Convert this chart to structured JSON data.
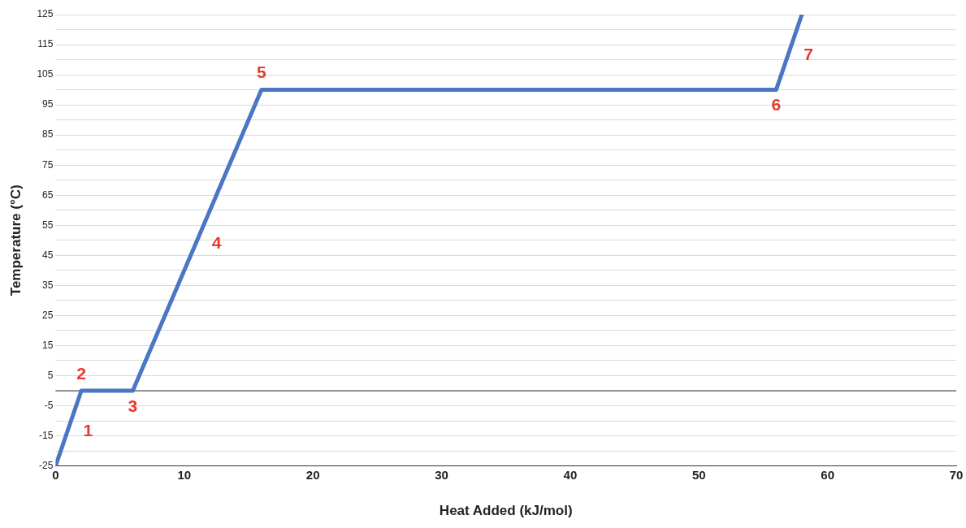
{
  "chart_data": {
    "type": "line",
    "xlabel": "Heat Added (kJ/mol)",
    "ylabel": "Temperature (°C)",
    "x": [
      0,
      2,
      6,
      16,
      56,
      58
    ],
    "series": [
      {
        "color": "#4a76c4",
        "values": [
          -25,
          0,
          0,
          100,
          100,
          125
        ]
      }
    ],
    "xlim": [
      0,
      70
    ],
    "xticks": [
      0,
      10,
      20,
      30,
      40,
      50,
      60,
      70
    ],
    "ylim": [
      -25,
      125
    ],
    "yticks": [
      -25,
      {
        "value": -20,
        "label": null
      },
      -15,
      {
        "value": -10,
        "label": null
      },
      -5,
      {
        "value": 0,
        "label": null
      },
      5,
      {
        "value": 10,
        "label": null
      },
      15,
      {
        "value": 20,
        "label": null
      },
      25,
      {
        "value": 30,
        "label": null
      },
      35,
      {
        "value": 40,
        "label": null
      },
      45,
      {
        "value": 50,
        "label": null
      },
      55,
      {
        "value": 60,
        "label": null
      },
      65,
      {
        "value": 70,
        "label": null
      },
      75,
      {
        "value": 80,
        "label": null
      },
      85,
      {
        "value": 90,
        "label": null
      },
      95,
      {
        "value": 100,
        "label": null
      },
      105,
      {
        "value": 110,
        "label": null
      },
      115,
      {
        "value": 120,
        "label": null
      },
      125
    ],
    "grid": "y",
    "legend": false,
    "marker": "none",
    "line_style": "solid",
    "ref_lines": [
      {
        "axis": "y",
        "value": 0,
        "color": "#333333"
      }
    ],
    "annotations": [
      {
        "text": "1",
        "x": 1,
        "y": -12.5
      },
      {
        "text": "2",
        "x": 2,
        "y": 0
      },
      {
        "text": "3",
        "x": 6,
        "y": 0
      },
      {
        "text": "4",
        "x": 11,
        "y": 50
      },
      {
        "text": "5",
        "x": 16,
        "y": 100
      },
      {
        "text": "6",
        "x": 56,
        "y": 100
      },
      {
        "text": "7",
        "x": 57,
        "y": 112.5
      }
    ]
  }
}
